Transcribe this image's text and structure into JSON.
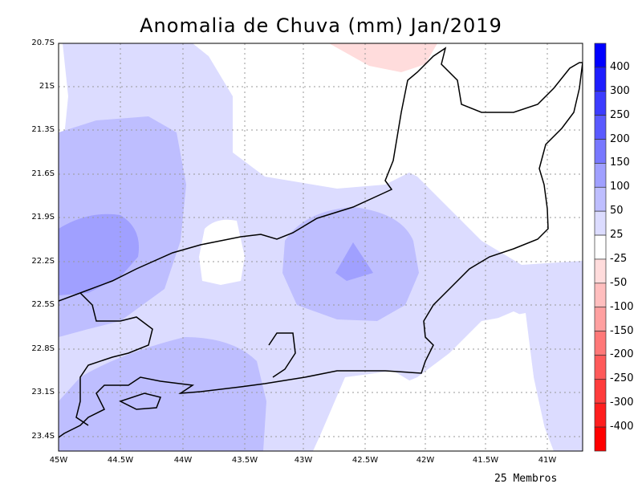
{
  "title": "Anomalia de Chuva (mm) Jan/2019",
  "footer": "25 Membros",
  "lat_ticks": [
    "20.7S",
    "21S",
    "21.3S",
    "21.6S",
    "21.9S",
    "22.2S",
    "22.5S",
    "22.8S",
    "23.1S",
    "23.4S"
  ],
  "lon_ticks": [
    "45W",
    "44.5W",
    "44W",
    "43.5W",
    "43W",
    "42.5W",
    "42W",
    "41.5W",
    "41W"
  ],
  "colorbar": {
    "labels": [
      "400",
      "300",
      "250",
      "200",
      "150",
      "100",
      "50",
      "25",
      "-25",
      "-50",
      "-100",
      "-150",
      "-200",
      "-250",
      "-300",
      "-400"
    ],
    "colors": [
      "#0000ff",
      "#1e1eff",
      "#3c3cff",
      "#5a5aff",
      "#7878ff",
      "#a0a0ff",
      "#bebeff",
      "#dcdcff",
      "#ffffff",
      "#ffdcdc",
      "#ffbebe",
      "#ffa0a0",
      "#ff7878",
      "#ff5a5a",
      "#ff3c3c",
      "#ff1e1e",
      "#ff0000"
    ]
  }
}
